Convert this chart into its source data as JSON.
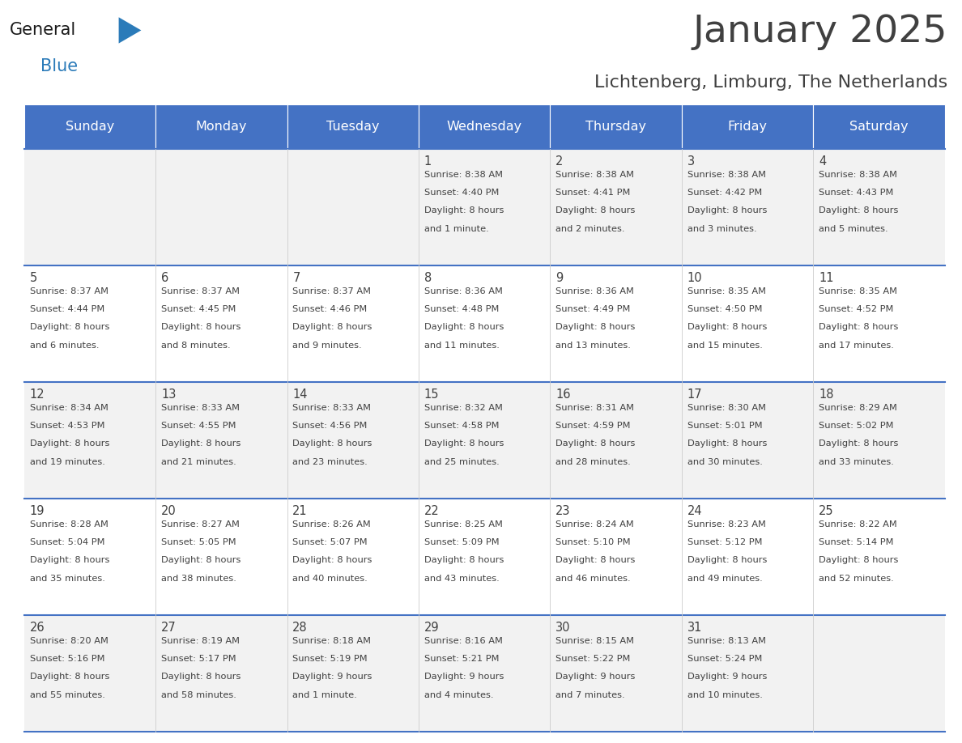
{
  "title": "January 2025",
  "subtitle": "Lichtenberg, Limburg, The Netherlands",
  "header_bg": "#4472C4",
  "header_text_color": "#FFFFFF",
  "days_of_week": [
    "Sunday",
    "Monday",
    "Tuesday",
    "Wednesday",
    "Thursday",
    "Friday",
    "Saturday"
  ],
  "row_colors": [
    "#F2F2F2",
    "#FFFFFF"
  ],
  "grid_line_color": "#4472C4",
  "text_color": "#404040",
  "calendar_data": [
    [
      {
        "day": "",
        "sunrise": "",
        "sunset": "",
        "daylight": ""
      },
      {
        "day": "",
        "sunrise": "",
        "sunset": "",
        "daylight": ""
      },
      {
        "day": "",
        "sunrise": "",
        "sunset": "",
        "daylight": ""
      },
      {
        "day": "1",
        "sunrise": "8:38 AM",
        "sunset": "4:40 PM",
        "daylight": "8 hours and 1 minute."
      },
      {
        "day": "2",
        "sunrise": "8:38 AM",
        "sunset": "4:41 PM",
        "daylight": "8 hours and 2 minutes."
      },
      {
        "day": "3",
        "sunrise": "8:38 AM",
        "sunset": "4:42 PM",
        "daylight": "8 hours and 3 minutes."
      },
      {
        "day": "4",
        "sunrise": "8:38 AM",
        "sunset": "4:43 PM",
        "daylight": "8 hours and 5 minutes."
      }
    ],
    [
      {
        "day": "5",
        "sunrise": "8:37 AM",
        "sunset": "4:44 PM",
        "daylight": "8 hours and 6 minutes."
      },
      {
        "day": "6",
        "sunrise": "8:37 AM",
        "sunset": "4:45 PM",
        "daylight": "8 hours and 8 minutes."
      },
      {
        "day": "7",
        "sunrise": "8:37 AM",
        "sunset": "4:46 PM",
        "daylight": "8 hours and 9 minutes."
      },
      {
        "day": "8",
        "sunrise": "8:36 AM",
        "sunset": "4:48 PM",
        "daylight": "8 hours and 11 minutes."
      },
      {
        "day": "9",
        "sunrise": "8:36 AM",
        "sunset": "4:49 PM",
        "daylight": "8 hours and 13 minutes."
      },
      {
        "day": "10",
        "sunrise": "8:35 AM",
        "sunset": "4:50 PM",
        "daylight": "8 hours and 15 minutes."
      },
      {
        "day": "11",
        "sunrise": "8:35 AM",
        "sunset": "4:52 PM",
        "daylight": "8 hours and 17 minutes."
      }
    ],
    [
      {
        "day": "12",
        "sunrise": "8:34 AM",
        "sunset": "4:53 PM",
        "daylight": "8 hours and 19 minutes."
      },
      {
        "day": "13",
        "sunrise": "8:33 AM",
        "sunset": "4:55 PM",
        "daylight": "8 hours and 21 minutes."
      },
      {
        "day": "14",
        "sunrise": "8:33 AM",
        "sunset": "4:56 PM",
        "daylight": "8 hours and 23 minutes."
      },
      {
        "day": "15",
        "sunrise": "8:32 AM",
        "sunset": "4:58 PM",
        "daylight": "8 hours and 25 minutes."
      },
      {
        "day": "16",
        "sunrise": "8:31 AM",
        "sunset": "4:59 PM",
        "daylight": "8 hours and 28 minutes."
      },
      {
        "day": "17",
        "sunrise": "8:30 AM",
        "sunset": "5:01 PM",
        "daylight": "8 hours and 30 minutes."
      },
      {
        "day": "18",
        "sunrise": "8:29 AM",
        "sunset": "5:02 PM",
        "daylight": "8 hours and 33 minutes."
      }
    ],
    [
      {
        "day": "19",
        "sunrise": "8:28 AM",
        "sunset": "5:04 PM",
        "daylight": "8 hours and 35 minutes."
      },
      {
        "day": "20",
        "sunrise": "8:27 AM",
        "sunset": "5:05 PM",
        "daylight": "8 hours and 38 minutes."
      },
      {
        "day": "21",
        "sunrise": "8:26 AM",
        "sunset": "5:07 PM",
        "daylight": "8 hours and 40 minutes."
      },
      {
        "day": "22",
        "sunrise": "8:25 AM",
        "sunset": "5:09 PM",
        "daylight": "8 hours and 43 minutes."
      },
      {
        "day": "23",
        "sunrise": "8:24 AM",
        "sunset": "5:10 PM",
        "daylight": "8 hours and 46 minutes."
      },
      {
        "day": "24",
        "sunrise": "8:23 AM",
        "sunset": "5:12 PM",
        "daylight": "8 hours and 49 minutes."
      },
      {
        "day": "25",
        "sunrise": "8:22 AM",
        "sunset": "5:14 PM",
        "daylight": "8 hours and 52 minutes."
      }
    ],
    [
      {
        "day": "26",
        "sunrise": "8:20 AM",
        "sunset": "5:16 PM",
        "daylight": "8 hours and 55 minutes."
      },
      {
        "day": "27",
        "sunrise": "8:19 AM",
        "sunset": "5:17 PM",
        "daylight": "8 hours and 58 minutes."
      },
      {
        "day": "28",
        "sunrise": "8:18 AM",
        "sunset": "5:19 PM",
        "daylight": "9 hours and 1 minute."
      },
      {
        "day": "29",
        "sunrise": "8:16 AM",
        "sunset": "5:21 PM",
        "daylight": "9 hours and 4 minutes."
      },
      {
        "day": "30",
        "sunrise": "8:15 AM",
        "sunset": "5:22 PM",
        "daylight": "9 hours and 7 minutes."
      },
      {
        "day": "31",
        "sunrise": "8:13 AM",
        "sunset": "5:24 PM",
        "daylight": "9 hours and 10 minutes."
      },
      {
        "day": "",
        "sunrise": "",
        "sunset": "",
        "daylight": ""
      }
    ]
  ],
  "logo_general_color": "#1a1a1a",
  "logo_blue_color": "#2B7BB9",
  "logo_triangle_color": "#2B7BB9",
  "fig_width": 11.88,
  "fig_height": 9.18,
  "dpi": 100
}
